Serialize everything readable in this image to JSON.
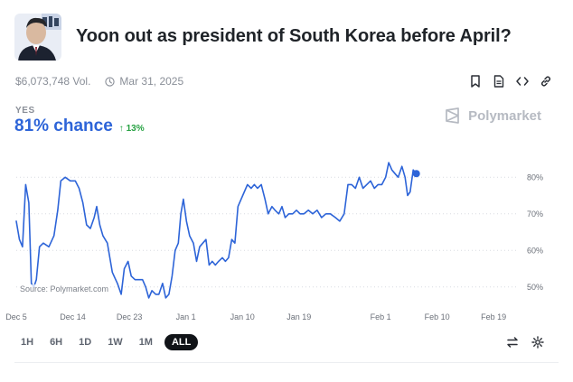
{
  "market": {
    "title": "Yoon out as president of South Korea before April?",
    "volume": "$6,073,748 Vol.",
    "end_date": "Mar 31, 2025",
    "avatar_icon": "portrait-photo"
  },
  "actions": [
    "bookmark-icon",
    "document-icon",
    "embed-code-icon",
    "link-icon"
  ],
  "outcome": {
    "label": "YES",
    "chance": "81% chance",
    "delta": "13%",
    "delta_icon": "arrow-up-icon"
  },
  "brand": {
    "name": "Polymarket"
  },
  "source_note": "Source: Polymarket.com",
  "time_ranges": [
    "1H",
    "6H",
    "1D",
    "1W",
    "1M",
    "ALL"
  ],
  "time_range_selected": "ALL",
  "tools": [
    "swap-arrows-icon",
    "gear-icon"
  ],
  "colors": {
    "line": "#2d64d8",
    "accent": "#2d64d8",
    "up": "#27a243",
    "grid": "#d9dce1"
  },
  "chart_data": {
    "type": "line",
    "series": [
      {
        "values": [
          [
            0,
            68
          ],
          [
            0.5,
            63
          ],
          [
            1,
            61
          ],
          [
            1.5,
            78
          ],
          [
            2,
            73
          ],
          [
            2.4,
            51
          ],
          [
            2.8,
            50
          ],
          [
            3.2,
            52
          ],
          [
            3.7,
            61
          ],
          [
            4.3,
            62
          ],
          [
            5.2,
            61
          ],
          [
            6.0,
            64
          ],
          [
            6.6,
            71
          ],
          [
            7.1,
            79
          ],
          [
            7.8,
            80
          ],
          [
            8.6,
            79
          ],
          [
            9.4,
            79
          ],
          [
            10.0,
            77
          ],
          [
            10.6,
            73
          ],
          [
            11.2,
            67
          ],
          [
            11.8,
            66
          ],
          [
            12.4,
            69
          ],
          [
            12.8,
            72
          ],
          [
            13.3,
            67
          ],
          [
            13.8,
            64
          ],
          [
            14.5,
            62
          ],
          [
            15.3,
            54
          ],
          [
            16.1,
            51
          ],
          [
            16.7,
            48
          ],
          [
            17.2,
            55
          ],
          [
            17.8,
            57
          ],
          [
            18.3,
            53
          ],
          [
            18.9,
            52
          ],
          [
            19.5,
            52
          ],
          [
            20.1,
            52
          ],
          [
            20.6,
            50
          ],
          [
            21.1,
            47
          ],
          [
            21.6,
            49
          ],
          [
            22.2,
            48
          ],
          [
            22.7,
            48
          ],
          [
            23.3,
            51
          ],
          [
            23.8,
            47
          ],
          [
            24.3,
            48
          ],
          [
            24.8,
            53
          ],
          [
            25.3,
            60
          ],
          [
            25.8,
            62
          ],
          [
            26.2,
            70
          ],
          [
            26.6,
            74
          ],
          [
            27.1,
            68
          ],
          [
            27.6,
            64
          ],
          [
            28.2,
            62
          ],
          [
            28.7,
            57
          ],
          [
            29.2,
            61
          ],
          [
            29.7,
            62
          ],
          [
            30.2,
            63
          ],
          [
            30.7,
            56
          ],
          [
            31.2,
            57
          ],
          [
            31.7,
            56
          ],
          [
            32.2,
            57
          ],
          [
            32.8,
            58
          ],
          [
            33.3,
            57
          ],
          [
            33.8,
            58
          ],
          [
            34.3,
            63
          ],
          [
            34.8,
            62
          ],
          [
            35.3,
            72
          ],
          [
            35.8,
            74
          ],
          [
            36.3,
            76
          ],
          [
            36.8,
            78
          ],
          [
            37.4,
            77
          ],
          [
            37.9,
            78
          ],
          [
            38.4,
            77
          ],
          [
            39.0,
            78
          ],
          [
            39.6,
            74
          ],
          [
            40.1,
            70
          ],
          [
            40.7,
            72
          ],
          [
            41.2,
            71
          ],
          [
            41.8,
            70
          ],
          [
            42.3,
            72
          ],
          [
            42.8,
            69
          ],
          [
            43.4,
            70
          ],
          [
            44.0,
            70
          ],
          [
            44.6,
            71
          ],
          [
            45.2,
            70
          ],
          [
            45.8,
            70
          ],
          [
            46.5,
            71
          ],
          [
            47.2,
            70
          ],
          [
            47.9,
            71
          ],
          [
            48.6,
            69
          ],
          [
            49.3,
            70
          ],
          [
            50.0,
            70
          ],
          [
            50.8,
            69
          ],
          [
            51.5,
            68
          ],
          [
            52.2,
            70
          ],
          [
            52.8,
            78
          ],
          [
            53.4,
            78
          ],
          [
            54.0,
            77
          ],
          [
            54.6,
            80
          ],
          [
            55.2,
            77
          ],
          [
            55.8,
            78
          ],
          [
            56.4,
            79
          ],
          [
            57.0,
            77
          ],
          [
            57.6,
            78
          ],
          [
            58.2,
            78
          ],
          [
            58.8,
            80
          ],
          [
            59.3,
            84
          ],
          [
            59.8,
            82
          ],
          [
            60.3,
            81
          ],
          [
            60.8,
            80
          ],
          [
            61.4,
            83
          ],
          [
            61.9,
            80
          ],
          [
            62.3,
            75
          ],
          [
            62.7,
            76
          ],
          [
            63.2,
            82
          ],
          [
            63.7,
            81
          ]
        ]
      }
    ],
    "x_ticks": [
      {
        "v": 0,
        "label": "Dec 5"
      },
      {
        "v": 9,
        "label": "Dec 14"
      },
      {
        "v": 18,
        "label": "Dec 23"
      },
      {
        "v": 27,
        "label": "Jan 1"
      },
      {
        "v": 36,
        "label": "Jan 10"
      },
      {
        "v": 45,
        "label": "Jan 19"
      },
      {
        "v": 58,
        "label": "Feb 1"
      },
      {
        "v": 67,
        "label": "Feb 10"
      },
      {
        "v": 76,
        "label": "Feb 19"
      }
    ],
    "y_ticks": [
      50,
      60,
      70,
      80
    ],
    "y_tick_labels": [
      "50%",
      "60%",
      "70%",
      "80%"
    ],
    "ylim": [
      46,
      86
    ],
    "grid": true,
    "title": "",
    "xlabel": "",
    "ylabel": ""
  }
}
